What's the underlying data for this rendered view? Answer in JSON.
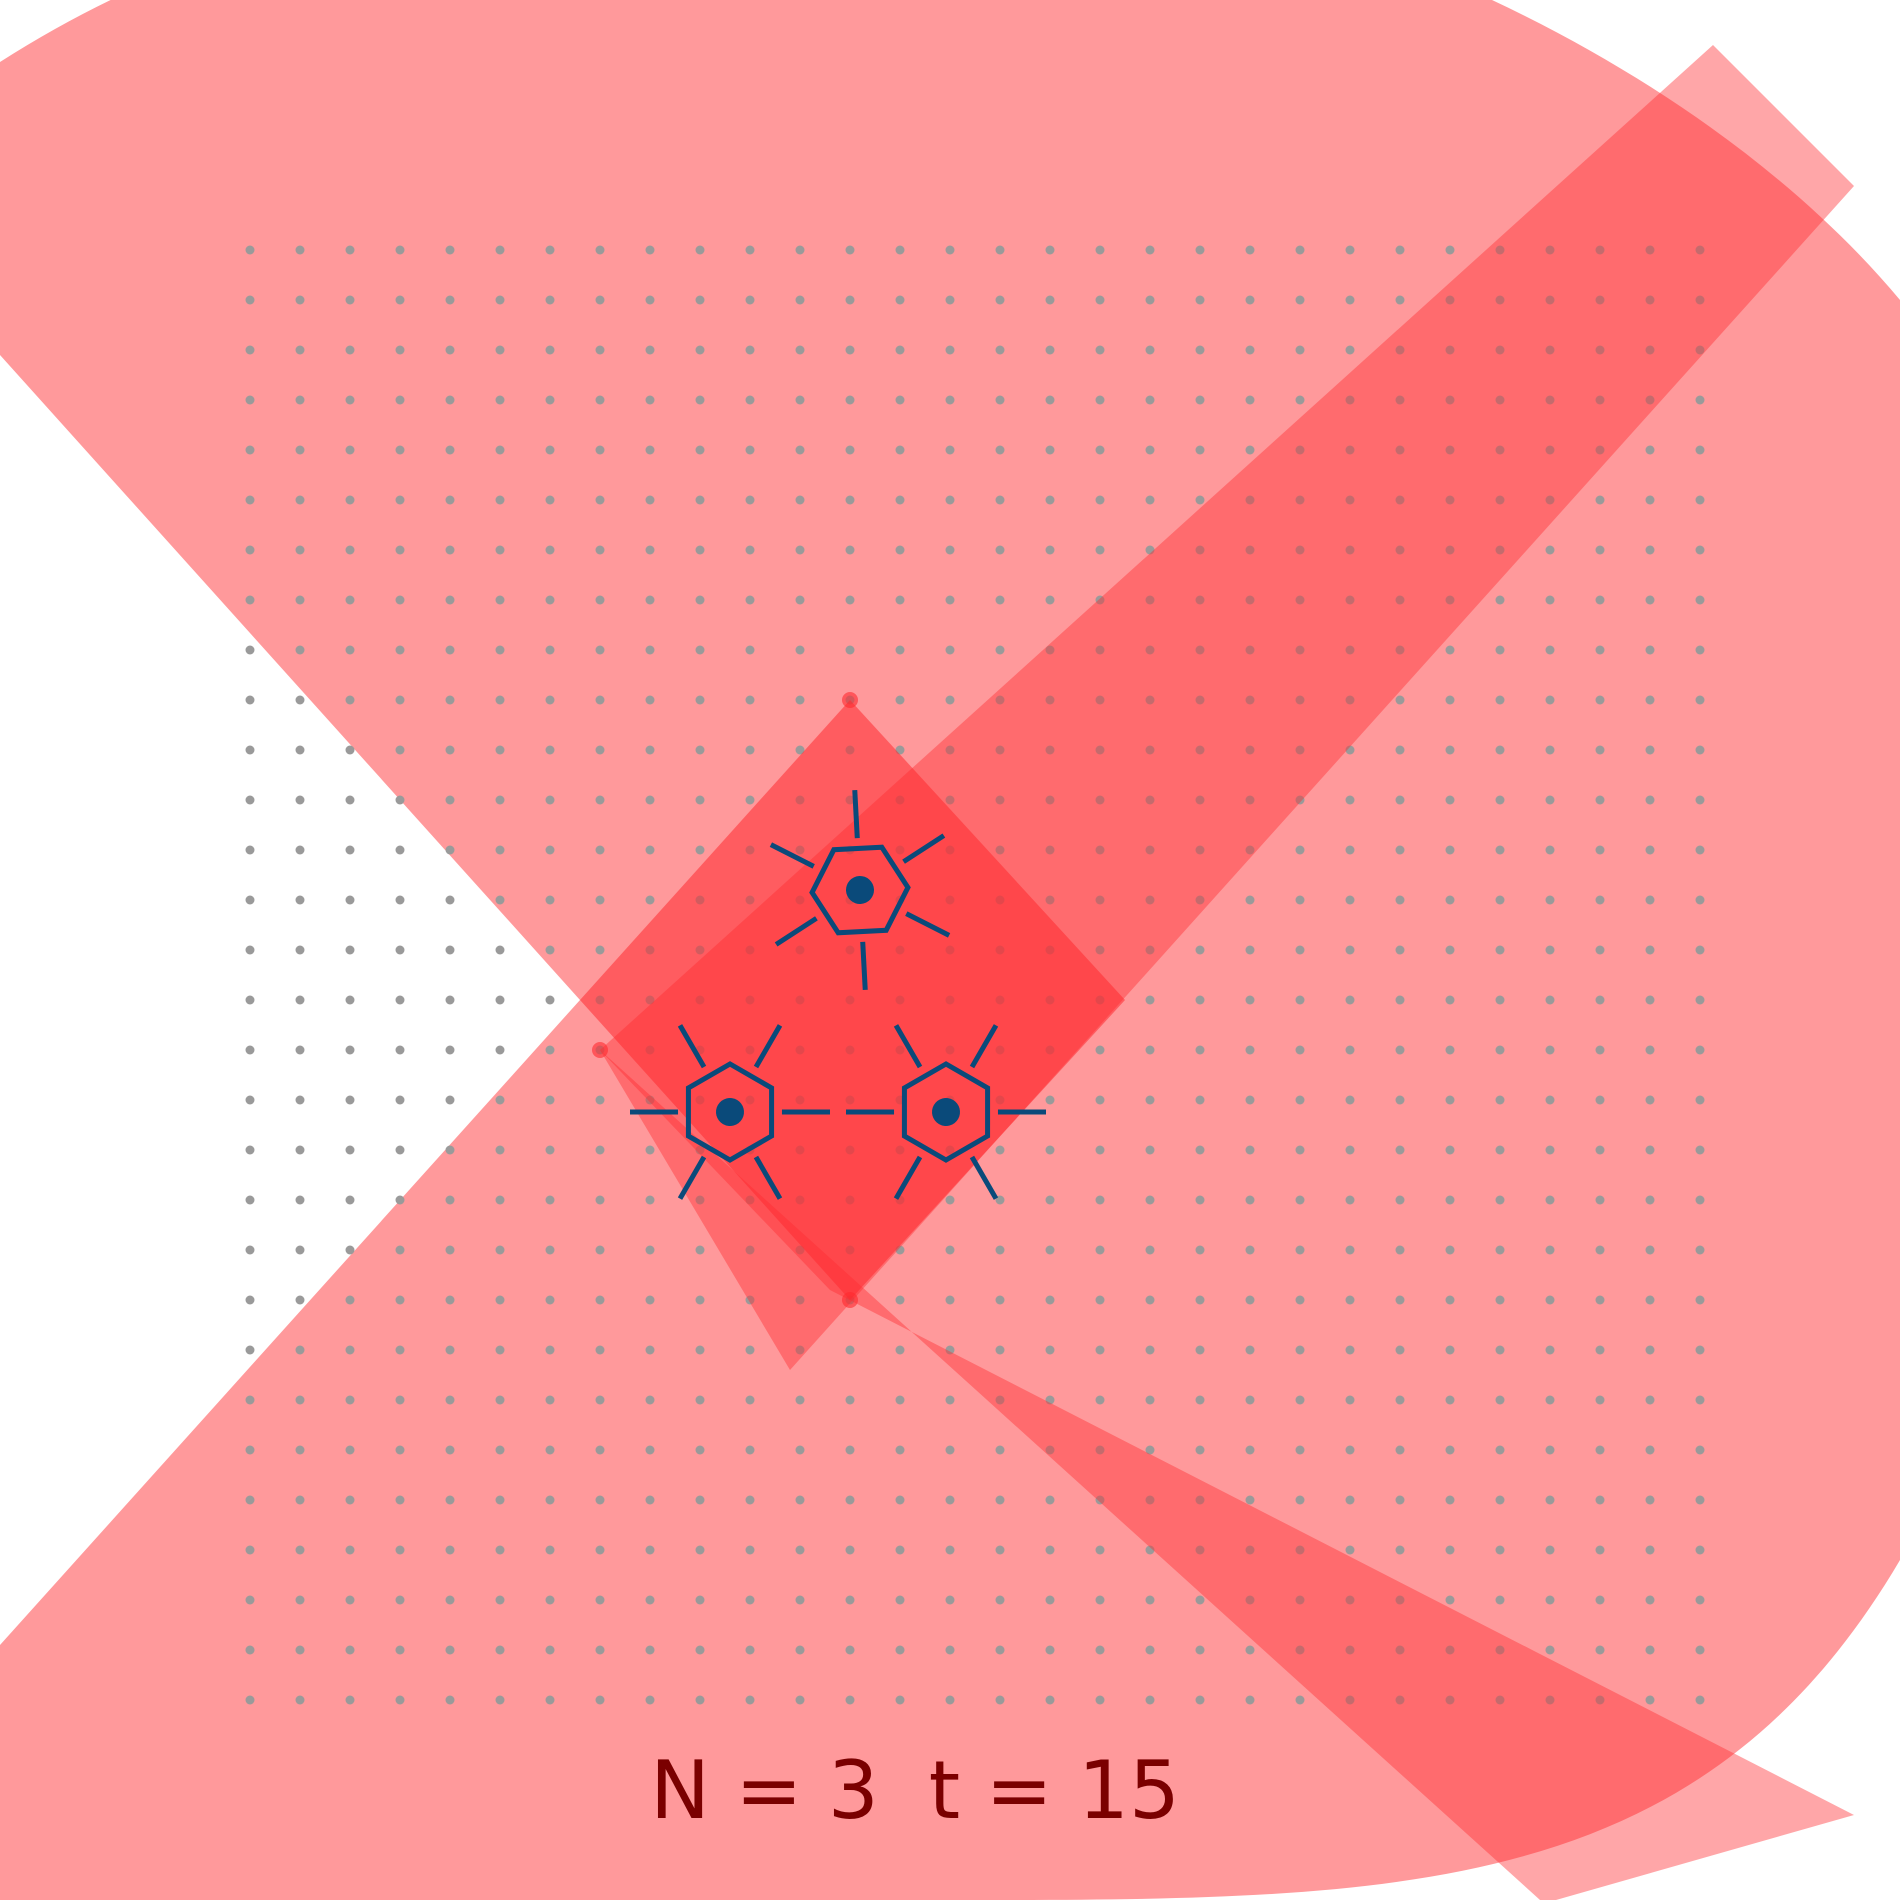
{
  "caption": {
    "n_text": "N = 3",
    "t_text": "t = 15"
  },
  "colors": {
    "background": "#ffffff",
    "region_fill": "#ff2a2f",
    "dot": "#9a9a9a",
    "agent": "#0a4a7a",
    "caption": "#7a0000"
  },
  "agents": [
    {
      "name": "agent-top"
    },
    {
      "name": "agent-bottom-left"
    },
    {
      "name": "agent-bottom-right"
    }
  ]
}
